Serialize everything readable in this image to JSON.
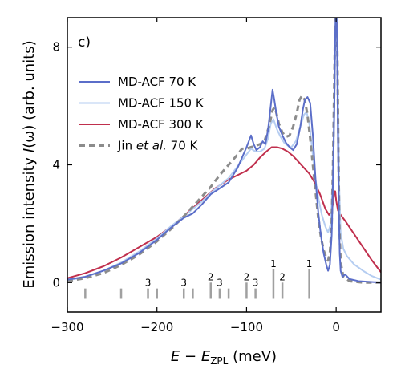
{
  "chart_data": {
    "type": "line",
    "panel_label": "c)",
    "xlabel": {
      "main": "E − E",
      "sub": "ZPL",
      "unit": " (meV)"
    },
    "ylabel": {
      "pre": "Emission intensity ",
      "sym": "I",
      "arg": "(ω)",
      "post": " (arb. units)"
    },
    "xlim": [
      -300,
      50
    ],
    "ylim": [
      -1,
      9
    ],
    "xticks": [
      -300,
      -200,
      -100,
      0
    ],
    "xtick_labels": [
      "−300",
      "−200",
      "−100",
      "0"
    ],
    "yticks": [
      0,
      4,
      8
    ],
    "ytick_labels": [
      "0",
      "4",
      "8"
    ],
    "grid": false,
    "legend_position": "upper-left",
    "series": [
      {
        "name": "MD-ACF 70 K",
        "color": "#5b6ec9",
        "width": 2,
        "dash": "",
        "points": [
          [
            -300,
            0.1
          ],
          [
            -280,
            0.2
          ],
          [
            -260,
            0.4
          ],
          [
            -240,
            0.65
          ],
          [
            -220,
            1.0
          ],
          [
            -200,
            1.45
          ],
          [
            -185,
            1.85
          ],
          [
            -170,
            2.2
          ],
          [
            -160,
            2.35
          ],
          [
            -150,
            2.65
          ],
          [
            -140,
            3.0
          ],
          [
            -130,
            3.2
          ],
          [
            -120,
            3.4
          ],
          [
            -110,
            3.9
          ],
          [
            -100,
            4.6
          ],
          [
            -95,
            5.0
          ],
          [
            -92,
            4.7
          ],
          [
            -89,
            4.5
          ],
          [
            -85,
            4.6
          ],
          [
            -82,
            4.8
          ],
          [
            -79,
            4.7
          ],
          [
            -76,
            5.2
          ],
          [
            -73,
            6.0
          ],
          [
            -71,
            6.55
          ],
          [
            -69,
            6.2
          ],
          [
            -67,
            5.8
          ],
          [
            -64,
            5.3
          ],
          [
            -60,
            5.0
          ],
          [
            -56,
            4.75
          ],
          [
            -52,
            4.6
          ],
          [
            -48,
            4.5
          ],
          [
            -44,
            4.7
          ],
          [
            -40,
            5.3
          ],
          [
            -37,
            5.9
          ],
          [
            -35,
            6.2
          ],
          [
            -32,
            6.3
          ],
          [
            -29,
            6.1
          ],
          [
            -26,
            5.0
          ],
          [
            -23,
            3.5
          ],
          [
            -20,
            2.4
          ],
          [
            -17,
            1.6
          ],
          [
            -14,
            1.0
          ],
          [
            -11,
            0.6
          ],
          [
            -9,
            0.4
          ],
          [
            -7,
            0.6
          ],
          [
            -5,
            1.6
          ],
          [
            -3.5,
            3.5
          ],
          [
            -2,
            6.0
          ],
          [
            -1,
            8.5
          ],
          [
            -0.5,
            9.0
          ],
          [
            0.5,
            9.0
          ],
          [
            1,
            8.2
          ],
          [
            2,
            5.0
          ],
          [
            3,
            2.5
          ],
          [
            4,
            1.0
          ],
          [
            5,
            0.4
          ],
          [
            7,
            0.2
          ],
          [
            10,
            0.28
          ],
          [
            15,
            0.12
          ],
          [
            25,
            0.05
          ],
          [
            50,
            0.0
          ]
        ]
      },
      {
        "name": "MD-ACF 150 K",
        "color": "#b5cdf1",
        "width": 2,
        "dash": "",
        "points": [
          [
            -300,
            0.08
          ],
          [
            -280,
            0.18
          ],
          [
            -260,
            0.4
          ],
          [
            -240,
            0.68
          ],
          [
            -220,
            1.05
          ],
          [
            -200,
            1.5
          ],
          [
            -185,
            1.9
          ],
          [
            -170,
            2.25
          ],
          [
            -160,
            2.5
          ],
          [
            -150,
            2.75
          ],
          [
            -140,
            3.05
          ],
          [
            -130,
            3.3
          ],
          [
            -120,
            3.55
          ],
          [
            -110,
            3.95
          ],
          [
            -100,
            4.35
          ],
          [
            -95,
            4.55
          ],
          [
            -90,
            4.45
          ],
          [
            -85,
            4.45
          ],
          [
            -80,
            4.55
          ],
          [
            -76,
            4.9
          ],
          [
            -73,
            5.4
          ],
          [
            -70,
            5.55
          ],
          [
            -66,
            5.2
          ],
          [
            -62,
            4.95
          ],
          [
            -58,
            4.75
          ],
          [
            -54,
            4.65
          ],
          [
            -50,
            4.6
          ],
          [
            -45,
            4.8
          ],
          [
            -40,
            5.3
          ],
          [
            -36,
            5.7
          ],
          [
            -33,
            5.8
          ],
          [
            -30,
            5.4
          ],
          [
            -27,
            4.6
          ],
          [
            -24,
            3.7
          ],
          [
            -20,
            2.9
          ],
          [
            -16,
            2.3
          ],
          [
            -12,
            1.9
          ],
          [
            -9,
            1.7
          ],
          [
            -6,
            2.0
          ],
          [
            -4,
            3.3
          ],
          [
            -2.5,
            5.5
          ],
          [
            -1.5,
            7.8
          ],
          [
            -0.8,
            9.0
          ],
          [
            0.8,
            9.0
          ],
          [
            1.5,
            7.8
          ],
          [
            2.5,
            5.5
          ],
          [
            3.5,
            3.2
          ],
          [
            5,
            1.7
          ],
          [
            8,
            1.15
          ],
          [
            12,
            0.9
          ],
          [
            20,
            0.62
          ],
          [
            30,
            0.4
          ],
          [
            40,
            0.22
          ],
          [
            50,
            0.1
          ]
        ]
      },
      {
        "name": "MD-ACF 300 K",
        "color": "#c02f4d",
        "width": 2,
        "dash": "",
        "points": [
          [
            -300,
            0.15
          ],
          [
            -280,
            0.32
          ],
          [
            -260,
            0.55
          ],
          [
            -240,
            0.85
          ],
          [
            -220,
            1.2
          ],
          [
            -200,
            1.55
          ],
          [
            -180,
            2.0
          ],
          [
            -165,
            2.4
          ],
          [
            -150,
            2.8
          ],
          [
            -135,
            3.2
          ],
          [
            -120,
            3.5
          ],
          [
            -110,
            3.65
          ],
          [
            -100,
            3.8
          ],
          [
            -92,
            4.0
          ],
          [
            -85,
            4.25
          ],
          [
            -78,
            4.45
          ],
          [
            -72,
            4.6
          ],
          [
            -66,
            4.6
          ],
          [
            -60,
            4.55
          ],
          [
            -54,
            4.45
          ],
          [
            -48,
            4.3
          ],
          [
            -42,
            4.1
          ],
          [
            -36,
            3.9
          ],
          [
            -30,
            3.7
          ],
          [
            -24,
            3.4
          ],
          [
            -18,
            3.0
          ],
          [
            -12,
            2.5
          ],
          [
            -8,
            2.3
          ],
          [
            -5,
            2.4
          ],
          [
            -3,
            2.8
          ],
          [
            -2,
            3.1
          ],
          [
            -1,
            3.1
          ],
          [
            0,
            2.8
          ],
          [
            2,
            2.45
          ],
          [
            5,
            2.3
          ],
          [
            10,
            2.1
          ],
          [
            20,
            1.65
          ],
          [
            30,
            1.2
          ],
          [
            40,
            0.75
          ],
          [
            50,
            0.35
          ]
        ]
      },
      {
        "name": "Jin et al. 70 K",
        "name_pre": "Jin ",
        "name_em": "et al.",
        "name_post": " 70 K",
        "color": "#8c8c8c",
        "width": 3,
        "dash": "7,5",
        "points": [
          [
            -300,
            0.05
          ],
          [
            -280,
            0.15
          ],
          [
            -260,
            0.32
          ],
          [
            -240,
            0.6
          ],
          [
            -220,
            0.95
          ],
          [
            -200,
            1.4
          ],
          [
            -185,
            1.8
          ],
          [
            -170,
            2.25
          ],
          [
            -155,
            2.75
          ],
          [
            -140,
            3.25
          ],
          [
            -130,
            3.65
          ],
          [
            -120,
            4.0
          ],
          [
            -110,
            4.35
          ],
          [
            -105,
            4.55
          ],
          [
            -100,
            4.55
          ],
          [
            -95,
            4.6
          ],
          [
            -90,
            4.65
          ],
          [
            -85,
            4.7
          ],
          [
            -80,
            4.8
          ],
          [
            -75,
            5.3
          ],
          [
            -71,
            5.85
          ],
          [
            -69,
            5.95
          ],
          [
            -67,
            5.8
          ],
          [
            -64,
            5.4
          ],
          [
            -60,
            5.1
          ],
          [
            -56,
            4.95
          ],
          [
            -52,
            5.0
          ],
          [
            -48,
            5.3
          ],
          [
            -44,
            5.75
          ],
          [
            -41,
            6.2
          ],
          [
            -38,
            6.35
          ],
          [
            -35,
            6.2
          ],
          [
            -32,
            5.7
          ],
          [
            -29,
            4.9
          ],
          [
            -26,
            4.0
          ],
          [
            -23,
            3.1
          ],
          [
            -20,
            2.2
          ],
          [
            -17,
            1.55
          ],
          [
            -14,
            1.1
          ],
          [
            -11,
            0.85
          ],
          [
            -9,
            0.75
          ],
          [
            -7,
            1.0
          ],
          [
            -5,
            2.0
          ],
          [
            -3.5,
            4.0
          ],
          [
            -2.5,
            6.0
          ],
          [
            -1.5,
            8.0
          ],
          [
            -0.8,
            9.0
          ],
          [
            0.8,
            9.0
          ],
          [
            1.5,
            7.5
          ],
          [
            2.5,
            4.5
          ],
          [
            3.5,
            2.0
          ],
          [
            5,
            0.7
          ],
          [
            8,
            0.2
          ],
          [
            15,
            0.05
          ],
          [
            30,
            0.0
          ],
          [
            50,
            0.0
          ]
        ]
      }
    ],
    "peaks": [
      {
        "x": -280,
        "h": 0.35,
        "label": ""
      },
      {
        "x": -240,
        "h": 0.35,
        "label": ""
      },
      {
        "x": -210,
        "h": 0.35,
        "label": "3"
      },
      {
        "x": -200,
        "h": 0.35,
        "label": ""
      },
      {
        "x": -170,
        "h": 0.35,
        "label": "3"
      },
      {
        "x": -160,
        "h": 0.35,
        "label": ""
      },
      {
        "x": -140,
        "h": 0.55,
        "label": "2"
      },
      {
        "x": -130,
        "h": 0.35,
        "label": "3"
      },
      {
        "x": -120,
        "h": 0.35,
        "label": ""
      },
      {
        "x": -100,
        "h": 0.55,
        "label": "2"
      },
      {
        "x": -90,
        "h": 0.35,
        "label": "3"
      },
      {
        "x": -70,
        "h": 1.0,
        "label": "1"
      },
      {
        "x": -60,
        "h": 0.55,
        "label": "2"
      },
      {
        "x": -30,
        "h": 1.0,
        "label": "1"
      }
    ],
    "peak_baseline": -0.55,
    "peak_color": "#a0a0a0"
  }
}
